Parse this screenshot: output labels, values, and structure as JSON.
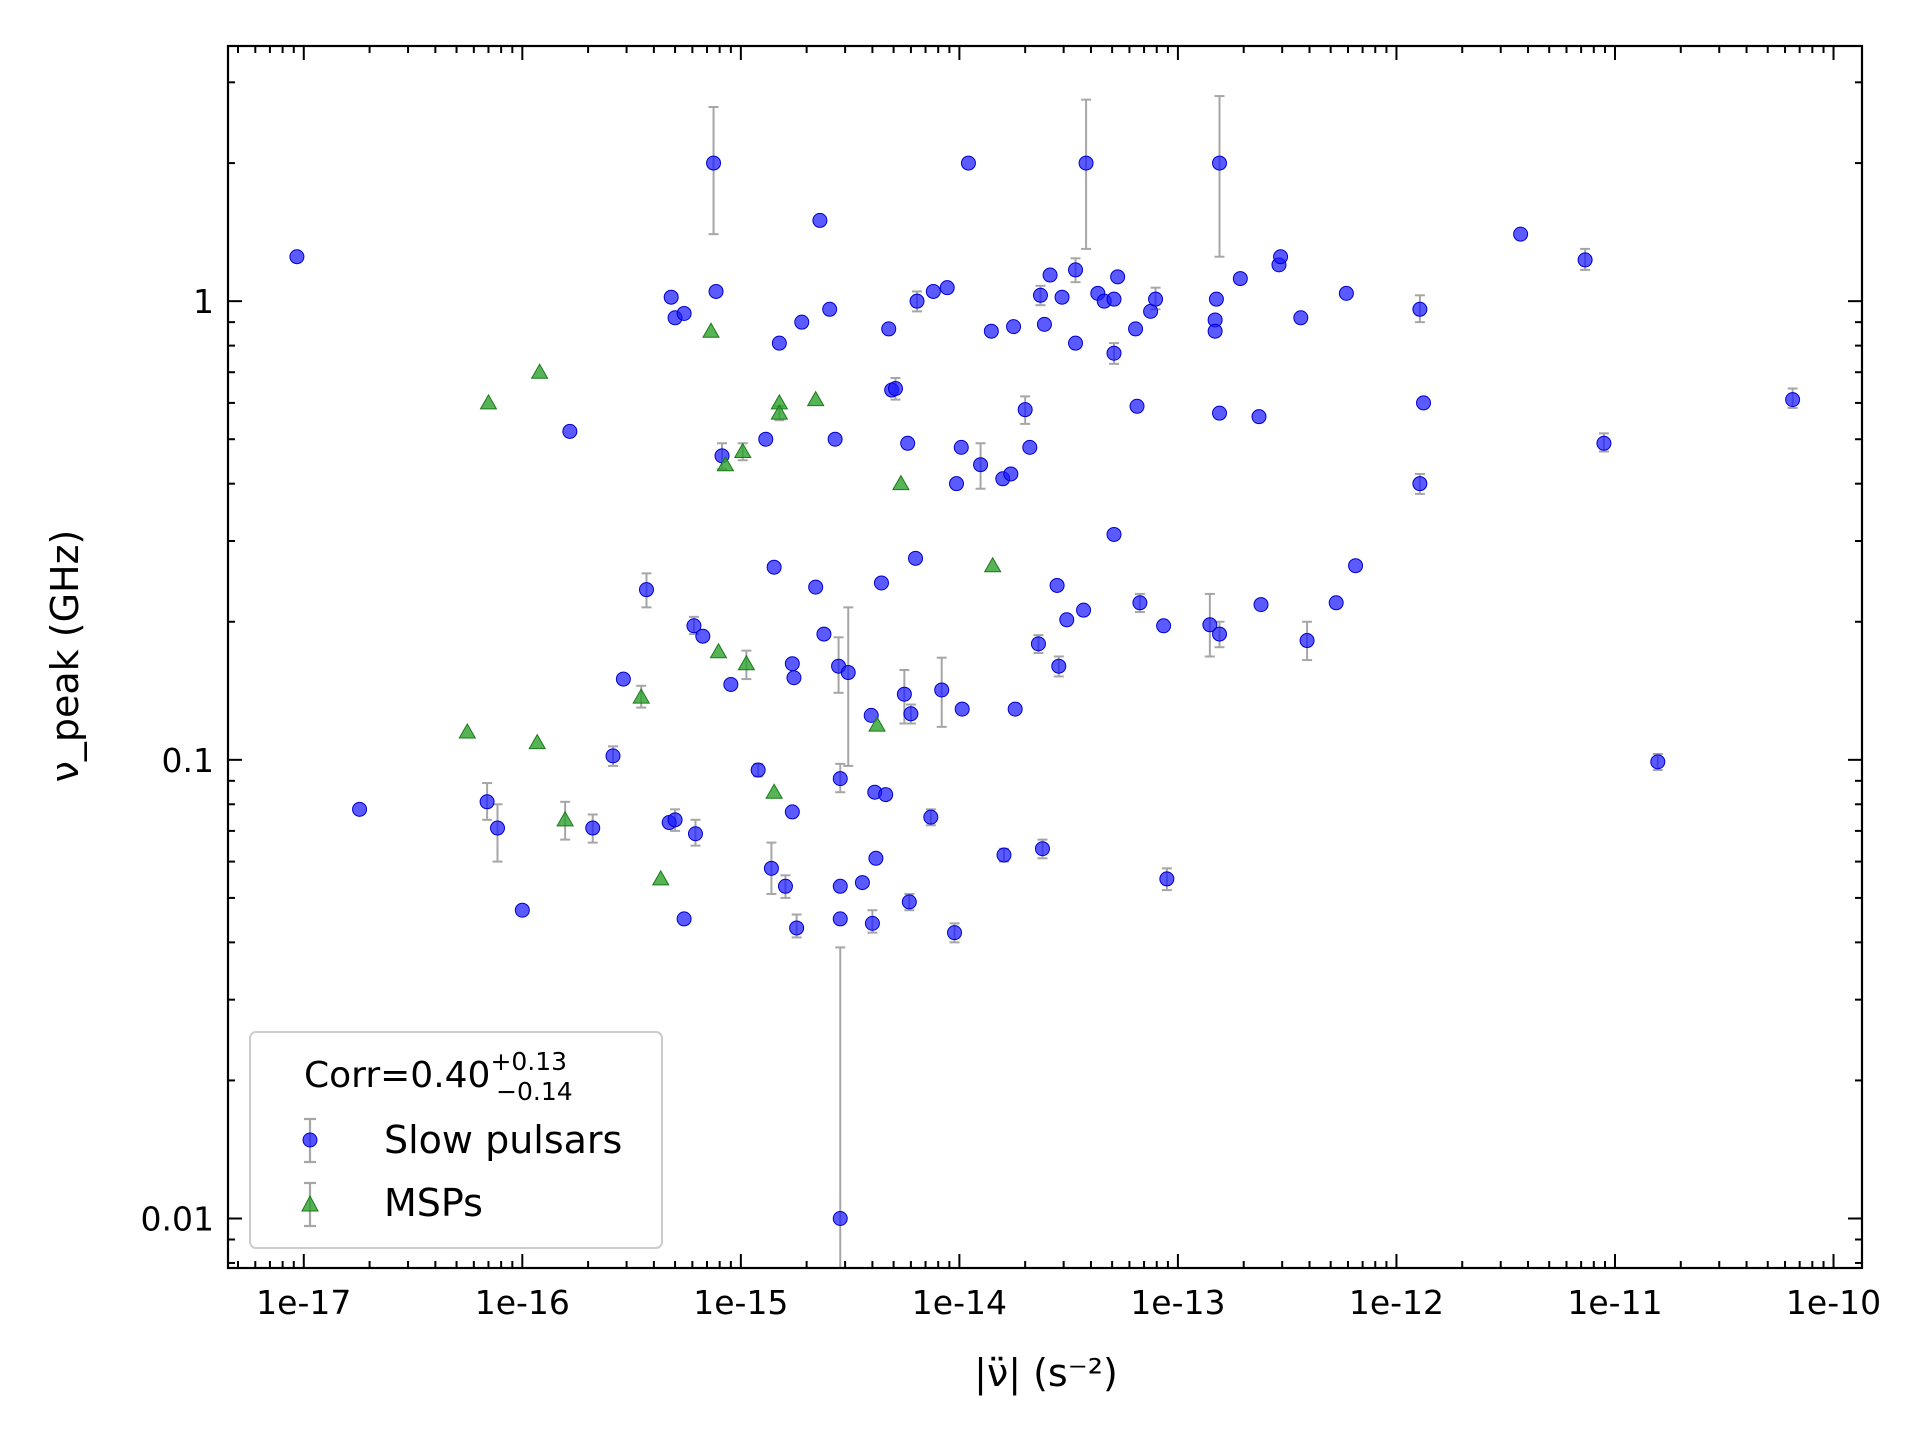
{
  "chart_data": {
    "type": "scatter",
    "title": "",
    "xlabel": "|ν̈| (s⁻²)",
    "ylabel": "ν_peak (GHz)",
    "x_scale": "log",
    "y_scale": "log",
    "xlim": [
      4.5e-18,
      1.35e-10
    ],
    "ylim": [
      0.0078,
      3.6
    ],
    "x_ticks": [
      1e-17,
      1e-16,
      1e-15,
      1e-14,
      1e-13,
      1e-12,
      1e-11,
      1e-10
    ],
    "x_tick_labels": [
      "1e-17",
      "1e-16",
      "1e-15",
      "1e-14",
      "1e-13",
      "1e-12",
      "1e-11",
      "1e-10"
    ],
    "y_ticks": [
      0.01,
      0.1,
      1
    ],
    "y_tick_labels": [
      "0.01",
      "0.1",
      "1"
    ],
    "grid": false,
    "legend": {
      "placement": "lower-left",
      "annotation": "Corr=0.40",
      "annotation_sup": "+0.13",
      "annotation_sub": "−0.14"
    },
    "series": [
      {
        "name": "Slow pulsars",
        "marker": "circle",
        "color": "#1a1aff",
        "error_color": "#a6a6a6",
        "points": [
          {
            "x": 9.3e-18,
            "y": 1.25
          },
          {
            "x": 1.8e-17,
            "y": 0.078
          },
          {
            "x": 6.9e-17,
            "y": 0.081,
            "ylo": 0.074,
            "yhi": 0.089
          },
          {
            "x": 7.7e-17,
            "y": 0.071,
            "ylo": 0.06,
            "yhi": 0.08
          },
          {
            "x": 1e-16,
            "y": 0.047
          },
          {
            "x": 1.65e-16,
            "y": 0.52
          },
          {
            "x": 2.1e-16,
            "y": 0.071,
            "ylo": 0.066,
            "yhi": 0.076
          },
          {
            "x": 2.6e-16,
            "y": 0.102,
            "ylo": 0.097,
            "yhi": 0.107
          },
          {
            "x": 2.9e-16,
            "y": 0.15
          },
          {
            "x": 3.7e-16,
            "y": 0.235,
            "ylo": 0.215,
            "yhi": 0.255
          },
          {
            "x": 4.7e-16,
            "y": 0.073
          },
          {
            "x": 4.8e-16,
            "y": 1.02
          },
          {
            "x": 5e-16,
            "y": 0.074,
            "ylo": 0.07,
            "yhi": 0.078
          },
          {
            "x": 5e-16,
            "y": 0.92
          },
          {
            "x": 5.5e-16,
            "y": 0.94
          },
          {
            "x": 5.5e-16,
            "y": 0.045
          },
          {
            "x": 6.1e-16,
            "y": 0.196,
            "ylo": 0.188,
            "yhi": 0.205
          },
          {
            "x": 6.2e-16,
            "y": 0.069,
            "ylo": 0.065,
            "yhi": 0.074
          },
          {
            "x": 6.7e-16,
            "y": 0.186
          },
          {
            "x": 7.5e-16,
            "y": 2.0,
            "ylo": 1.4,
            "yhi": 2.65
          },
          {
            "x": 7.7e-16,
            "y": 1.05
          },
          {
            "x": 8.2e-16,
            "y": 0.46,
            "ylo": 0.43,
            "yhi": 0.49
          },
          {
            "x": 9e-16,
            "y": 0.146
          },
          {
            "x": 1.2e-15,
            "y": 0.095,
            "ylo": 0.092,
            "yhi": 0.098
          },
          {
            "x": 1.3e-15,
            "y": 0.5
          },
          {
            "x": 1.38e-15,
            "y": 0.058,
            "ylo": 0.051,
            "yhi": 0.066
          },
          {
            "x": 1.42e-15,
            "y": 0.263
          },
          {
            "x": 1.5e-15,
            "y": 0.81
          },
          {
            "x": 1.6e-15,
            "y": 0.053,
            "ylo": 0.05,
            "yhi": 0.056
          },
          {
            "x": 1.72e-15,
            "y": 0.077
          },
          {
            "x": 1.72e-15,
            "y": 0.162
          },
          {
            "x": 1.75e-15,
            "y": 0.151
          },
          {
            "x": 1.8e-15,
            "y": 0.043,
            "ylo": 0.041,
            "yhi": 0.046
          },
          {
            "x": 1.9e-15,
            "y": 0.9
          },
          {
            "x": 2.2e-15,
            "y": 0.238
          },
          {
            "x": 2.3e-15,
            "y": 1.5
          },
          {
            "x": 2.4e-15,
            "y": 0.188
          },
          {
            "x": 2.55e-15,
            "y": 0.96
          },
          {
            "x": 2.7e-15,
            "y": 0.5
          },
          {
            "x": 2.8e-15,
            "y": 0.16,
            "ylo": 0.14,
            "yhi": 0.185
          },
          {
            "x": 2.85e-15,
            "y": 0.091,
            "ylo": 0.085,
            "yhi": 0.098
          },
          {
            "x": 2.85e-15,
            "y": 0.053
          },
          {
            "x": 2.85e-15,
            "y": 0.045
          },
          {
            "x": 2.85e-15,
            "y": 0.01,
            "ylo": 0.0078,
            "yhi": 0.039
          },
          {
            "x": 3.1e-15,
            "y": 0.155,
            "ylo": 0.097,
            "yhi": 0.215
          },
          {
            "x": 3.6e-15,
            "y": 0.054
          },
          {
            "x": 3.95e-15,
            "y": 0.125
          },
          {
            "x": 4e-15,
            "y": 0.044,
            "ylo": 0.042,
            "yhi": 0.047
          },
          {
            "x": 4.1e-15,
            "y": 0.085
          },
          {
            "x": 4.15e-15,
            "y": 0.061
          },
          {
            "x": 4.4e-15,
            "y": 0.243
          },
          {
            "x": 4.6e-15,
            "y": 0.084
          },
          {
            "x": 4.75e-15,
            "y": 0.87
          },
          {
            "x": 4.9e-15,
            "y": 0.64
          },
          {
            "x": 5.1e-15,
            "y": 0.645,
            "ylo": 0.61,
            "yhi": 0.68
          },
          {
            "x": 5.6e-15,
            "y": 0.139,
            "ylo": 0.12,
            "yhi": 0.157
          },
          {
            "x": 5.8e-15,
            "y": 0.49
          },
          {
            "x": 5.9e-15,
            "y": 0.049,
            "ylo": 0.047,
            "yhi": 0.051
          },
          {
            "x": 6e-15,
            "y": 0.126,
            "ylo": 0.12,
            "yhi": 0.132
          },
          {
            "x": 6.3e-15,
            "y": 0.275
          },
          {
            "x": 6.4e-15,
            "y": 1.0,
            "ylo": 0.95,
            "yhi": 1.05
          },
          {
            "x": 7.4e-15,
            "y": 0.075,
            "ylo": 0.072,
            "yhi": 0.078
          },
          {
            "x": 7.6e-15,
            "y": 1.05
          },
          {
            "x": 8.3e-15,
            "y": 0.142,
            "ylo": 0.118,
            "yhi": 0.167
          },
          {
            "x": 8.8e-15,
            "y": 1.07
          },
          {
            "x": 9.5e-15,
            "y": 0.042,
            "ylo": 0.04,
            "yhi": 0.044
          },
          {
            "x": 9.7e-15,
            "y": 0.4
          },
          {
            "x": 1.02e-14,
            "y": 0.48
          },
          {
            "x": 1.03e-14,
            "y": 0.129
          },
          {
            "x": 1.1e-14,
            "y": 2.0
          },
          {
            "x": 1.25e-14,
            "y": 0.44,
            "ylo": 0.39,
            "yhi": 0.49
          },
          {
            "x": 1.4e-14,
            "y": 0.86
          },
          {
            "x": 1.58e-14,
            "y": 0.41
          },
          {
            "x": 1.6e-14,
            "y": 0.062,
            "ylo": 0.06,
            "yhi": 0.064
          },
          {
            "x": 1.72e-14,
            "y": 0.42
          },
          {
            "x": 1.77e-14,
            "y": 0.88
          },
          {
            "x": 1.8e-14,
            "y": 0.129
          },
          {
            "x": 2e-14,
            "y": 0.58,
            "ylo": 0.54,
            "yhi": 0.62
          },
          {
            "x": 2.1e-14,
            "y": 0.48
          },
          {
            "x": 2.3e-14,
            "y": 0.179,
            "ylo": 0.171,
            "yhi": 0.187
          },
          {
            "x": 2.35e-14,
            "y": 1.03,
            "ylo": 0.98,
            "yhi": 1.08
          },
          {
            "x": 2.4e-14,
            "y": 0.064,
            "ylo": 0.061,
            "yhi": 0.067
          },
          {
            "x": 2.45e-14,
            "y": 0.89
          },
          {
            "x": 2.6e-14,
            "y": 1.14
          },
          {
            "x": 2.8e-14,
            "y": 0.24
          },
          {
            "x": 2.85e-14,
            "y": 0.16,
            "ylo": 0.152,
            "yhi": 0.168
          },
          {
            "x": 2.95e-14,
            "y": 1.02
          },
          {
            "x": 3.1e-14,
            "y": 0.202
          },
          {
            "x": 3.4e-14,
            "y": 1.17,
            "ylo": 1.1,
            "yhi": 1.24
          },
          {
            "x": 3.4e-14,
            "y": 0.81
          },
          {
            "x": 3.7e-14,
            "y": 0.212
          },
          {
            "x": 3.8e-14,
            "y": 2.0,
            "ylo": 1.3,
            "yhi": 2.75
          },
          {
            "x": 4.3e-14,
            "y": 1.04
          },
          {
            "x": 4.6e-14,
            "y": 1.0
          },
          {
            "x": 5.1e-14,
            "y": 0.31
          },
          {
            "x": 5.1e-14,
            "y": 0.77,
            "ylo": 0.73,
            "yhi": 0.81
          },
          {
            "x": 5.1e-14,
            "y": 1.01
          },
          {
            "x": 5.3e-14,
            "y": 1.13
          },
          {
            "x": 6.4e-14,
            "y": 0.87
          },
          {
            "x": 6.5e-14,
            "y": 0.59
          },
          {
            "x": 6.7e-14,
            "y": 0.22,
            "ylo": 0.21,
            "yhi": 0.23
          },
          {
            "x": 7.5e-14,
            "y": 0.95
          },
          {
            "x": 7.9e-14,
            "y": 1.01,
            "ylo": 0.96,
            "yhi": 1.07
          },
          {
            "x": 8.6e-14,
            "y": 0.196
          },
          {
            "x": 8.9e-14,
            "y": 0.055,
            "ylo": 0.052,
            "yhi": 0.058
          },
          {
            "x": 1.4e-13,
            "y": 0.197,
            "ylo": 0.168,
            "yhi": 0.23
          },
          {
            "x": 1.48e-13,
            "y": 0.91
          },
          {
            "x": 1.48e-13,
            "y": 0.86
          },
          {
            "x": 1.5e-13,
            "y": 1.01
          },
          {
            "x": 1.55e-13,
            "y": 0.188,
            "ylo": 0.176,
            "yhi": 0.2
          },
          {
            "x": 1.55e-13,
            "y": 0.57
          },
          {
            "x": 1.55e-13,
            "y": 2.0,
            "ylo": 1.25,
            "yhi": 2.8
          },
          {
            "x": 1.93e-13,
            "y": 1.12
          },
          {
            "x": 2.35e-13,
            "y": 0.56
          },
          {
            "x": 2.4e-13,
            "y": 0.218
          },
          {
            "x": 2.9e-13,
            "y": 1.2
          },
          {
            "x": 2.95e-13,
            "y": 1.25
          },
          {
            "x": 3.65e-13,
            "y": 0.92
          },
          {
            "x": 3.9e-13,
            "y": 0.182,
            "ylo": 0.165,
            "yhi": 0.2
          },
          {
            "x": 5.3e-13,
            "y": 0.22
          },
          {
            "x": 5.9e-13,
            "y": 1.04
          },
          {
            "x": 6.5e-13,
            "y": 0.265
          },
          {
            "x": 1.28e-12,
            "y": 0.96,
            "ylo": 0.9,
            "yhi": 1.03
          },
          {
            "x": 1.28e-12,
            "y": 0.4,
            "ylo": 0.38,
            "yhi": 0.42
          },
          {
            "x": 1.33e-12,
            "y": 0.6
          },
          {
            "x": 3.7e-12,
            "y": 1.4
          },
          {
            "x": 7.3e-12,
            "y": 1.23,
            "ylo": 1.17,
            "yhi": 1.3
          },
          {
            "x": 8.9e-12,
            "y": 0.49,
            "ylo": 0.47,
            "yhi": 0.515
          },
          {
            "x": 1.57e-11,
            "y": 0.099,
            "ylo": 0.095,
            "yhi": 0.103
          },
          {
            "x": 6.5e-11,
            "y": 0.61,
            "ylo": 0.585,
            "yhi": 0.645
          }
        ]
      },
      {
        "name": "MSPs",
        "marker": "triangle",
        "color": "#2ca02c",
        "error_color": "#a6a6a6",
        "points": [
          {
            "x": 5.6e-17,
            "y": 0.115
          },
          {
            "x": 7e-17,
            "y": 0.6
          },
          {
            "x": 1.17e-16,
            "y": 0.109
          },
          {
            "x": 1.2e-16,
            "y": 0.7
          },
          {
            "x": 1.57e-16,
            "y": 0.074,
            "ylo": 0.067,
            "yhi": 0.081
          },
          {
            "x": 3.5e-16,
            "y": 0.137,
            "ylo": 0.13,
            "yhi": 0.145
          },
          {
            "x": 4.3e-16,
            "y": 0.055
          },
          {
            "x": 7.3e-16,
            "y": 0.86
          },
          {
            "x": 7.9e-16,
            "y": 0.172
          },
          {
            "x": 8.5e-16,
            "y": 0.44
          },
          {
            "x": 1.02e-15,
            "y": 0.47,
            "ylo": 0.45,
            "yhi": 0.49
          },
          {
            "x": 1.06e-15,
            "y": 0.162,
            "ylo": 0.15,
            "yhi": 0.173
          },
          {
            "x": 1.42e-15,
            "y": 0.085
          },
          {
            "x": 1.5e-15,
            "y": 0.6
          },
          {
            "x": 1.5e-15,
            "y": 0.57,
            "ylo": 0.55,
            "yhi": 0.59
          },
          {
            "x": 2.2e-15,
            "y": 0.61
          },
          {
            "x": 4.2e-15,
            "y": 0.119
          },
          {
            "x": 5.4e-15,
            "y": 0.4
          },
          {
            "x": 1.42e-14,
            "y": 0.265
          }
        ]
      }
    ]
  }
}
